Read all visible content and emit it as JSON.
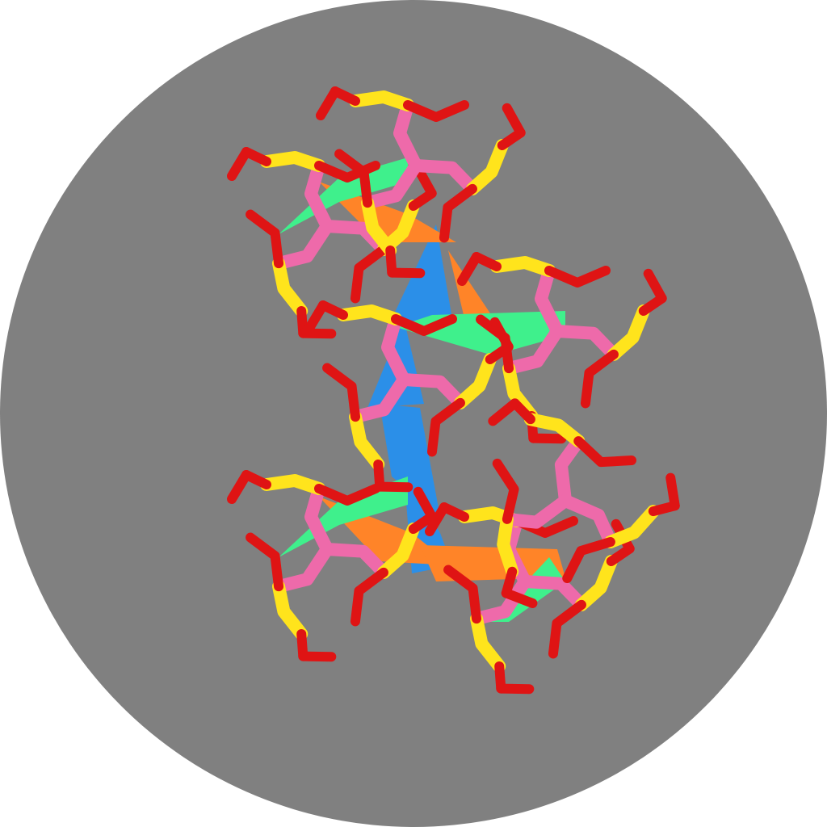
{
  "palette": {
    "background": "#808080",
    "page": "#ffffff",
    "blue": "#2b8fe8",
    "orange": "#ff8428",
    "green": "#3ff08c",
    "pink": "#ee6aaa",
    "yellow": "#ffe41c",
    "red": "#df1414"
  },
  "clusters": [
    {
      "id": "upper-left",
      "arms": 3
    },
    {
      "id": "top",
      "arms": 3
    },
    {
      "id": "right",
      "arms": 3
    },
    {
      "id": "center",
      "arms": 3
    },
    {
      "id": "lower-left",
      "arms": 3
    },
    {
      "id": "lower-middle",
      "arms": 3
    },
    {
      "id": "lower-right",
      "arms": 3
    }
  ]
}
